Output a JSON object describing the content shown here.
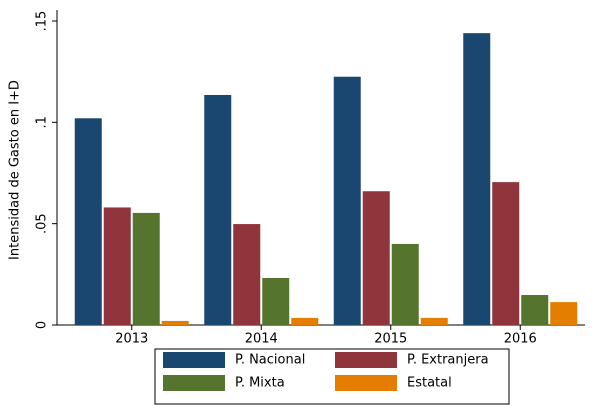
{
  "chart_data": {
    "type": "bar",
    "y_label": "Intensidad de Gasto en I+D",
    "categories": [
      "2013",
      "2014",
      "2015",
      "2016"
    ],
    "series": [
      {
        "name": "P. Nacional",
        "color": "#1a476f",
        "values": [
          0.102,
          0.1135,
          0.1225,
          0.144
        ]
      },
      {
        "name": "P. Extranjera",
        "color": "#90353b",
        "values": [
          0.058,
          0.0498,
          0.066,
          0.0705
        ]
      },
      {
        "name": "P. Mixta",
        "color": "#55752f",
        "values": [
          0.0553,
          0.0232,
          0.04,
          0.0148
        ]
      },
      {
        "name": "Estatal",
        "color": "#e37e00",
        "values": [
          0.002,
          0.0035,
          0.0035,
          0.0113
        ]
      }
    ],
    "ylim": [
      0,
      0.15
    ],
    "yticks": [
      0,
      {
        "value": 0.05,
        "label": ".05"
      },
      {
        "value": 0.1,
        "label": ".1"
      },
      {
        "value": 0.15,
        "label": ".15"
      }
    ],
    "legend": "bottom"
  }
}
